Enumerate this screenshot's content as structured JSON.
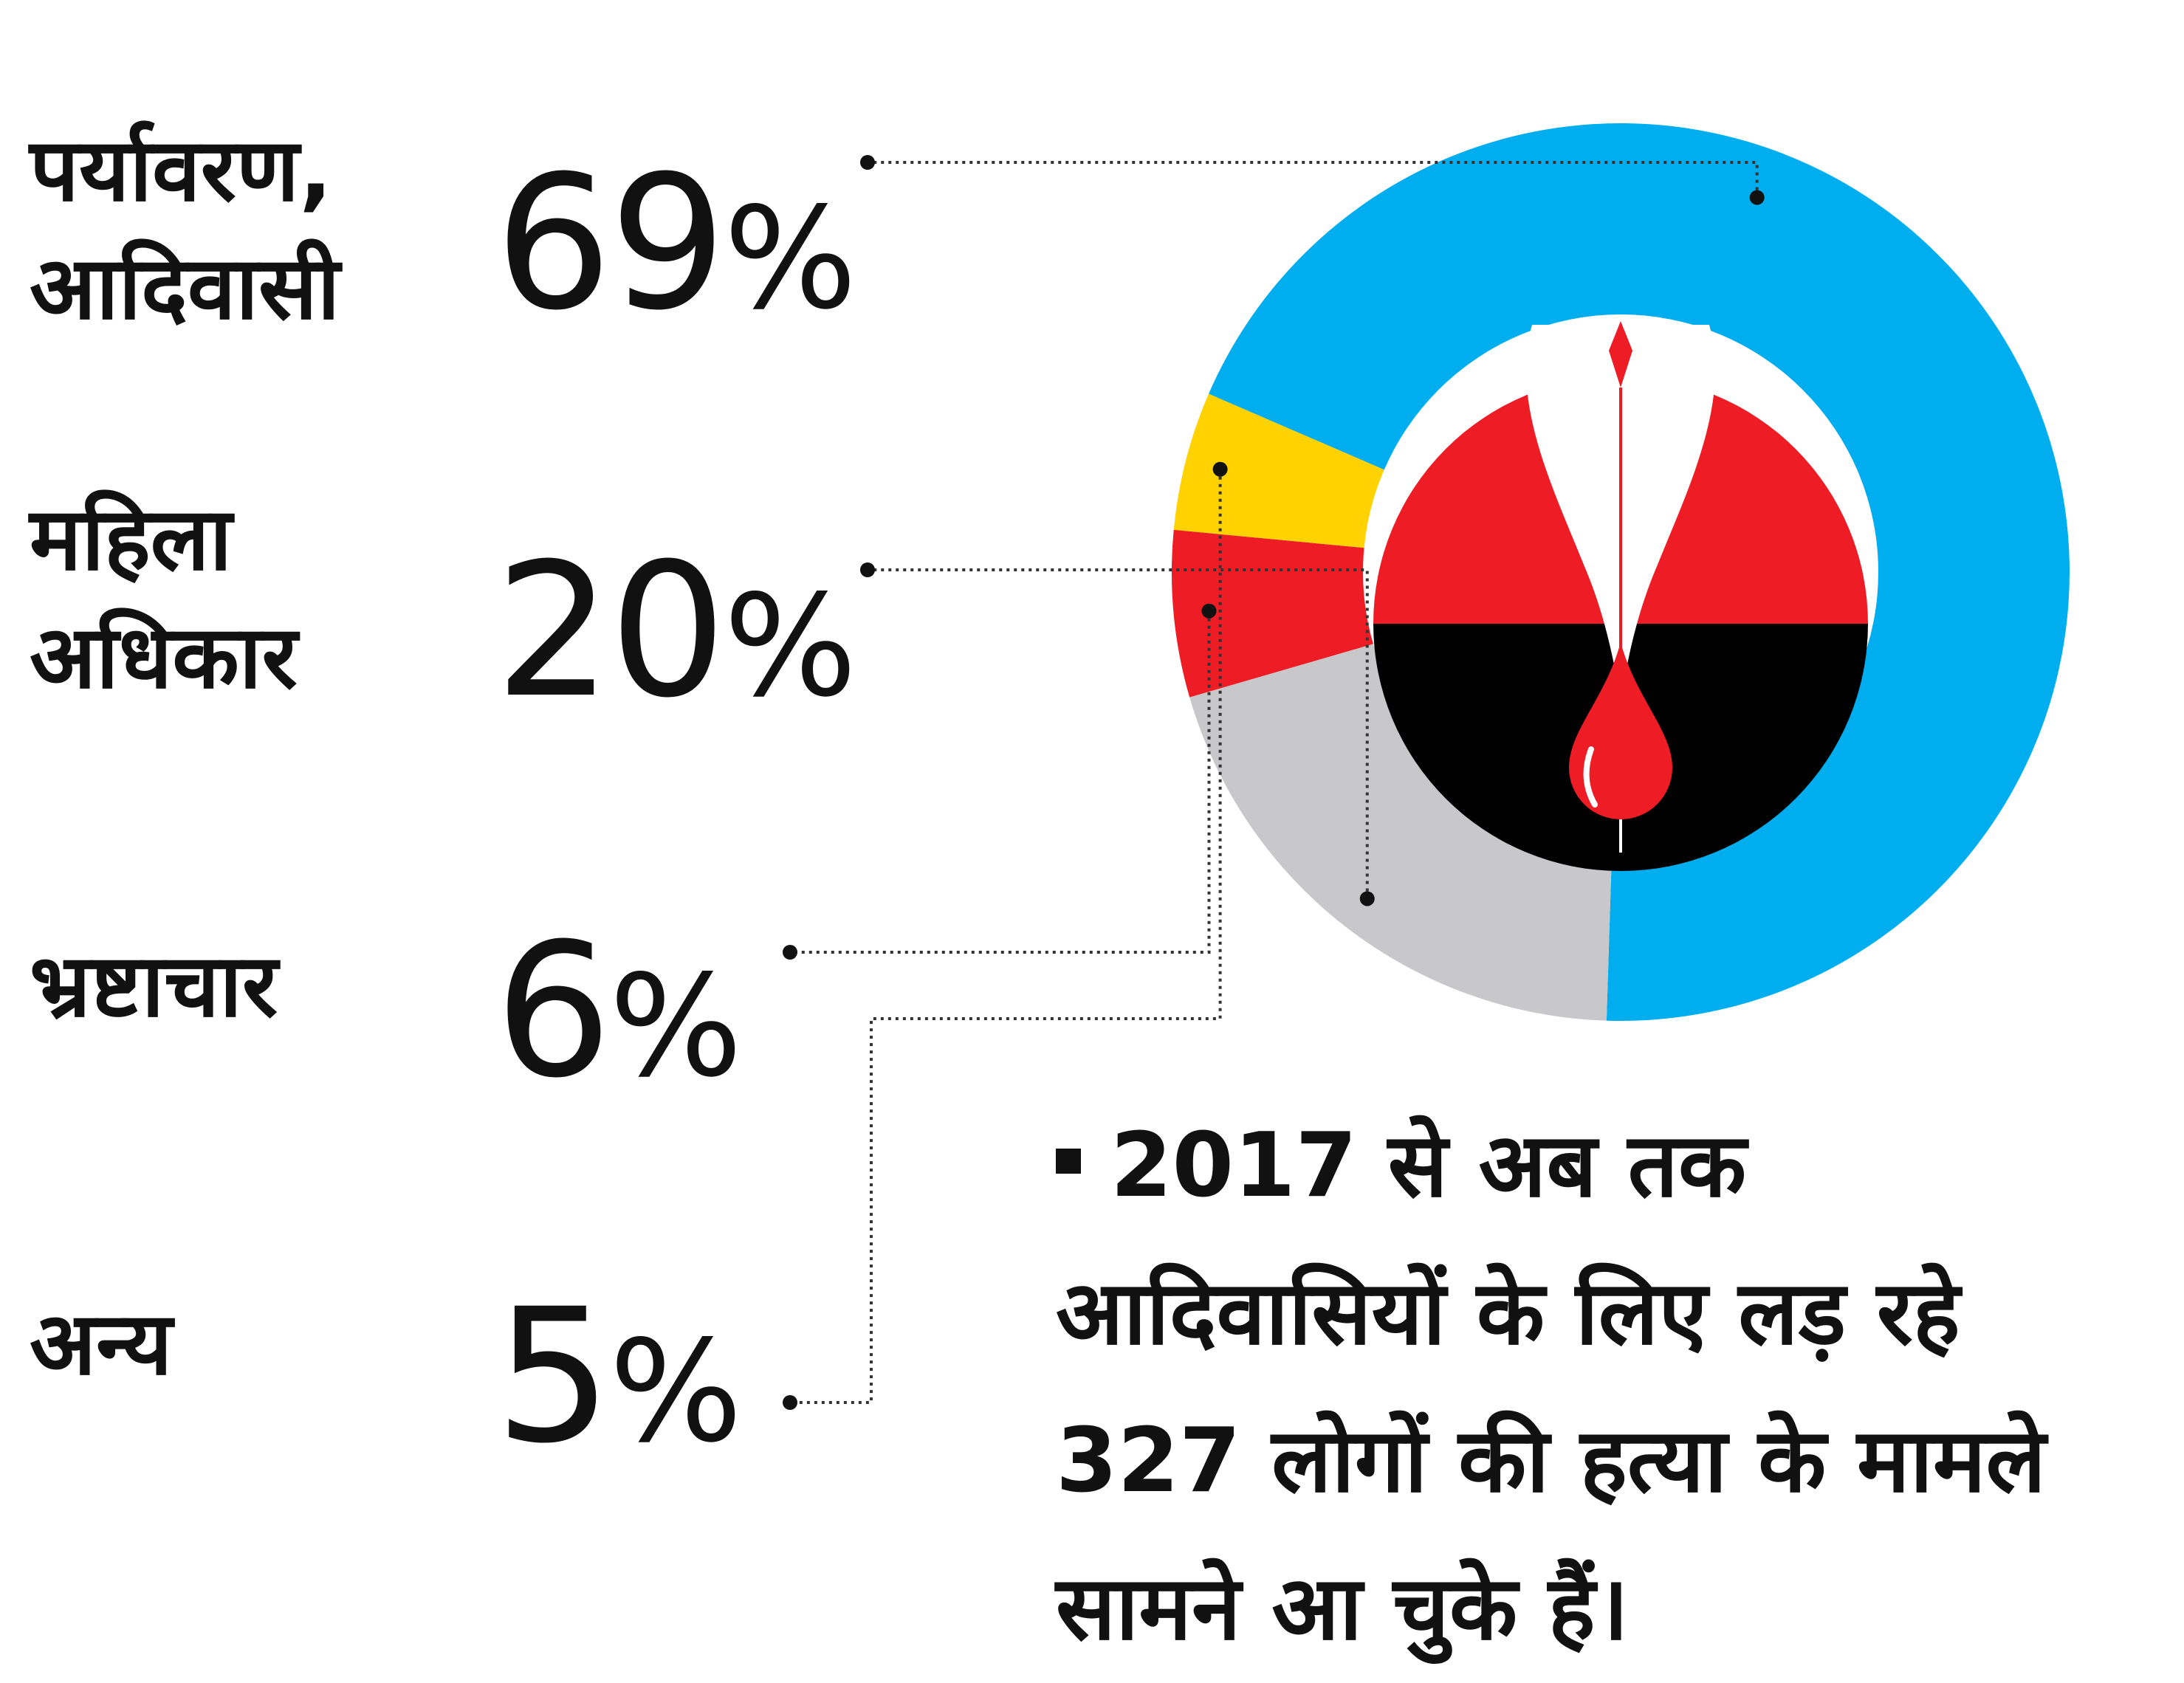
{
  "chart_data": {
    "type": "pie",
    "categories": [
      "पर्यावरण,\nआदिवासी",
      "महिला\nअधिकार",
      "भ्रष्टाचार",
      "अन्य"
    ],
    "values": [
      69,
      20,
      6,
      5
    ],
    "value_labels": [
      "69",
      "20",
      "6",
      "5"
    ],
    "unit": "%",
    "colors": [
      "#00AEEF",
      "#C8C8CA",
      "#EE1C25",
      "#FFD200"
    ],
    "legend_position": "left",
    "donut": true
  },
  "note": "2017 से अब तक आदिवासियों के लिए लड़ रहे 327 लोगों की हत्या के मामले सामने आ चुके हैं।",
  "emblem": {
    "icon": "pen-nib-with-blood-drop-icon",
    "colors": {
      "top": "#EE1C25",
      "bottom": "#000000",
      "nib": "#ffffff",
      "drop": "#EE1C25"
    }
  }
}
